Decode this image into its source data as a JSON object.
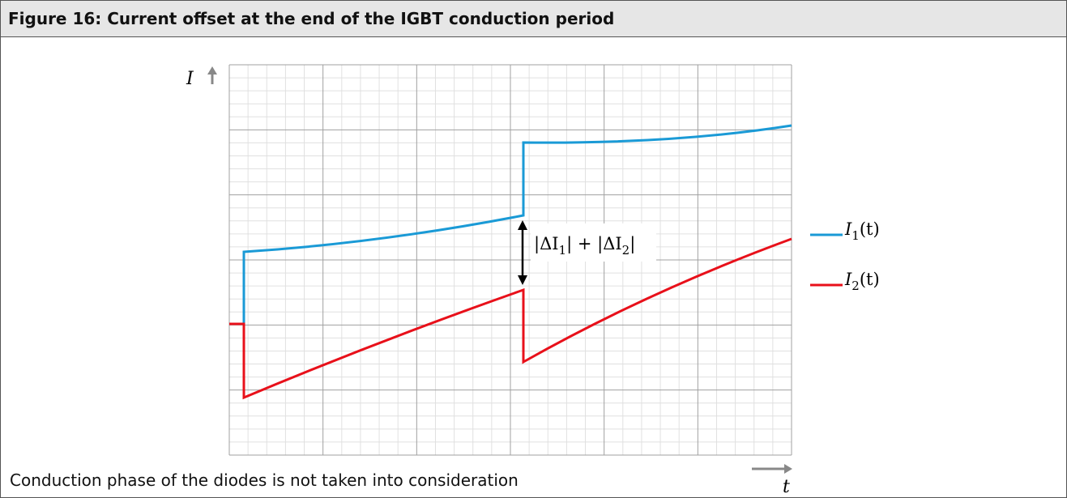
{
  "header": {
    "title": "Figure 16: Current offset at the end of the IGBT conduction period"
  },
  "axes": {
    "y_label": "I",
    "x_label": "t"
  },
  "annotation": {
    "parts": [
      "|ΔI",
      "1",
      "| + |ΔI",
      "2",
      "|"
    ]
  },
  "legend": [
    {
      "symbol": "I",
      "subscript": "1",
      "rest": "(t)"
    },
    {
      "symbol": "I",
      "subscript": "2",
      "rest": "(t)"
    }
  ],
  "footnote": "Conduction phase of the diodes is not taken into consideration"
}
